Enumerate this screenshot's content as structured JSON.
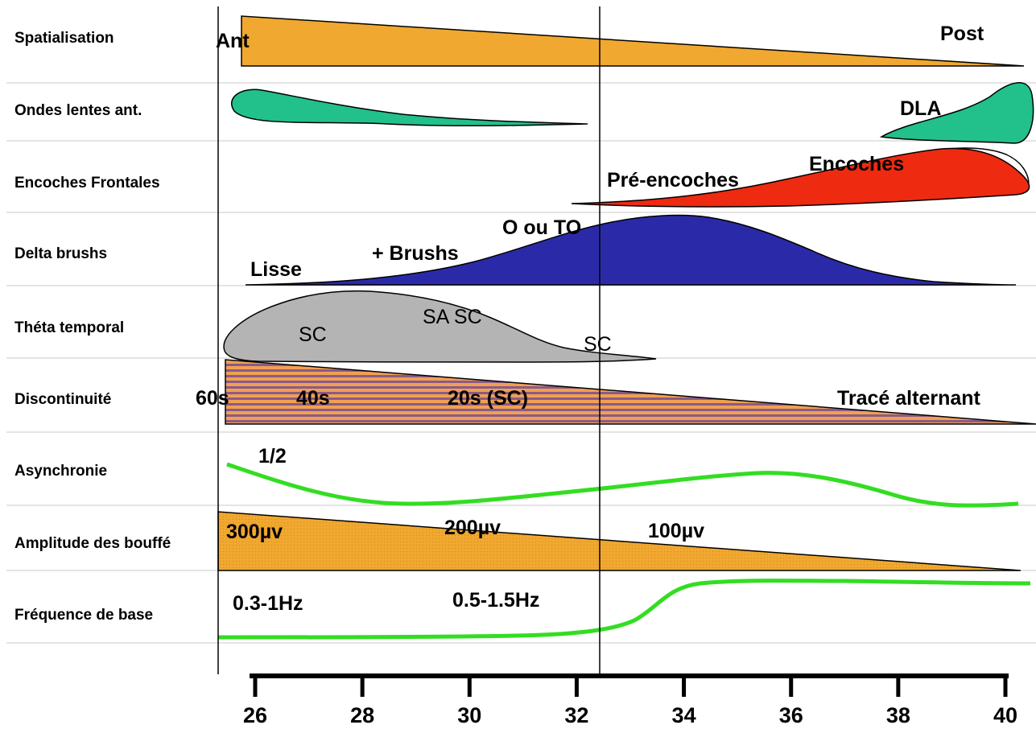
{
  "rows": [
    {
      "label": "Spatialisation"
    },
    {
      "label": "Ondes lentes ant."
    },
    {
      "label": "Encoches Frontales"
    },
    {
      "label": "Delta brushs"
    },
    {
      "label": "Théta temporal"
    },
    {
      "label": "Discontinuité"
    },
    {
      "label": "Asynchronie"
    },
    {
      "label": "Amplitude des bouffé"
    },
    {
      "label": "Fréquence de base"
    }
  ],
  "annotations": {
    "ant": "Ant",
    "post": "Post",
    "dla": "DLA",
    "pre_encoches": "Pré-encoches",
    "encoches": "Encoches",
    "o_ou_to": "O ou TO",
    "plus_brushs": "+ Brushs",
    "lisse": "Lisse",
    "sc_1": "SC",
    "sa_sc": "SA SC",
    "sc_2": "SC",
    "d_60s": "60s",
    "d_40s": "40s",
    "d_20s": "20s (SC)",
    "trace_alternant": "Tracé alternant",
    "half": "1/2",
    "amp_300": "300µv",
    "amp_200": "200µv",
    "amp_100": "100µv",
    "freq_low": "0.3-1Hz",
    "freq_mid": "0.5-1.5Hz"
  },
  "axis": {
    "ticks": [
      "26",
      "28",
      "30",
      "32",
      "34",
      "36",
      "38",
      "40"
    ]
  },
  "colors": {
    "spatialisation": "#f0a830",
    "ondes_lentes": "#22c08a",
    "encoches": "#ee2a10",
    "delta": "#2a2aa8",
    "theta": "#b4b4b4",
    "discontinuite_a": "#f0a050",
    "discontinuite_b": "#8a5a8a",
    "green_line": "#33dd22",
    "amplitude": "#f0a830"
  }
}
